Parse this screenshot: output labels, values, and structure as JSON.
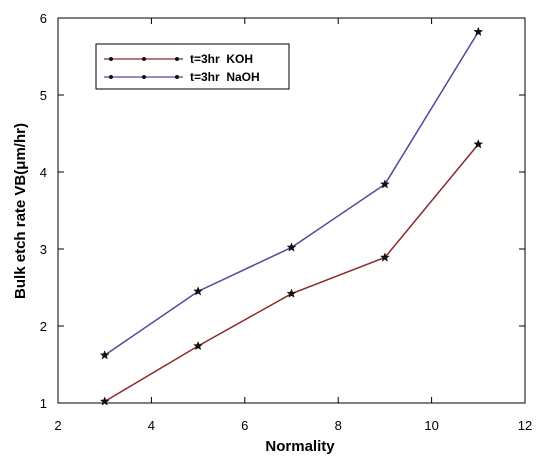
{
  "chart_data": {
    "type": "line",
    "xlabel": "Normality",
    "ylabel": "Bulk etch rate VB(μm/hr)",
    "xlim": [
      2,
      12
    ],
    "ylim": [
      1,
      6
    ],
    "xticks": [
      2,
      4,
      6,
      8,
      10,
      12
    ],
    "yticks": [
      1,
      2,
      3,
      4,
      5,
      6
    ],
    "x": [
      3,
      5,
      7,
      9,
      11
    ],
    "legend_position": "top-left",
    "grid": false,
    "series": [
      {
        "name": "t=3hr  KOH",
        "color": "#8b2a2a",
        "values": [
          1.02,
          1.74,
          2.42,
          2.89,
          4.36
        ]
      },
      {
        "name": "t=3hr  NaOH",
        "color": "#4a4aa0",
        "values": [
          1.62,
          2.45,
          3.02,
          3.84,
          5.82
        ]
      }
    ]
  }
}
